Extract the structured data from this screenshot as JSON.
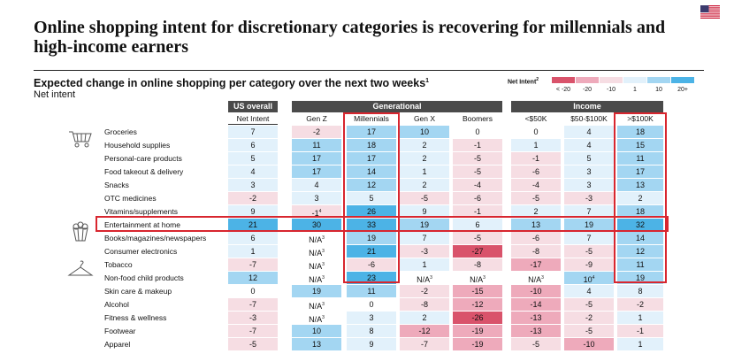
{
  "title": "Online shopping intent for discretionary categories is recovering for millennials and high-income earners",
  "subtitle": "Expected change in online shopping per category over the next two weeks",
  "subtitle_sup": "1",
  "unit": "Net intent",
  "legend": {
    "title": "Net Intent",
    "title_sup": "2",
    "labels": [
      "< -20",
      "-20",
      "-10",
      "1",
      "10",
      "20+"
    ],
    "colors": [
      "#d9536b",
      "#eeaabb",
      "#f6dde3",
      "#e2f1fb",
      "#a3d6f2",
      "#4cb3e6"
    ]
  },
  "groups": [
    {
      "label": "US overall"
    },
    {
      "label": "Generational"
    },
    {
      "label": "Income"
    }
  ],
  "columns": [
    "Net Intent",
    "Gen Z",
    "Millennials",
    "Gen X",
    "Boomers",
    "<$50K",
    "$50-$100K",
    ">$100K"
  ],
  "chart_data": {
    "type": "table",
    "columns": [
      "Net Intent",
      "Gen Z",
      "Millennials",
      "Gen X",
      "Boomers",
      "<$50K",
      "$50-$100K",
      ">$100K"
    ],
    "rows": [
      {
        "label": "Groceries",
        "values": [
          "7",
          "-2",
          "17",
          "10",
          "0",
          "0",
          "4",
          "18"
        ]
      },
      {
        "label": "Household supplies",
        "values": [
          "6",
          "11",
          "18",
          "2",
          "-1",
          "1",
          "4",
          "15"
        ]
      },
      {
        "label": "Personal-care products",
        "values": [
          "5",
          "17",
          "17",
          "2",
          "-5",
          "-1",
          "5",
          "11"
        ]
      },
      {
        "label": "Food takeout & delivery",
        "values": [
          "4",
          "17",
          "14",
          "1",
          "-5",
          "-6",
          "3",
          "17"
        ]
      },
      {
        "label": "Snacks",
        "values": [
          "3",
          "4",
          "12",
          "2",
          "-4",
          "-4",
          "3",
          "13"
        ]
      },
      {
        "label": "OTC medicines",
        "values": [
          "-2",
          "3",
          "5",
          "-5",
          "-6",
          "-5",
          "-3",
          "2"
        ]
      },
      {
        "label": "Vitamins/supplements",
        "values": [
          "9",
          "-1⁴",
          "26",
          "9",
          "-1",
          "2",
          "7",
          "18"
        ]
      },
      {
        "label": "Entertainment at home",
        "values": [
          "21",
          "30",
          "33",
          "19",
          "6",
          "13",
          "19",
          "32"
        ]
      },
      {
        "label": "Books/magazines/newspapers",
        "values": [
          "6",
          "N/A³",
          "19",
          "7",
          "-5",
          "-6",
          "7",
          "14"
        ]
      },
      {
        "label": "Consumer electronics",
        "values": [
          "1",
          "N/A³",
          "21",
          "-3",
          "-27",
          "-8",
          "-5",
          "12"
        ]
      },
      {
        "label": "Tobacco",
        "values": [
          "-7",
          "N/A³",
          "-6",
          "1",
          "-8",
          "-17",
          "-9",
          "11"
        ]
      },
      {
        "label": "Non-food child products",
        "values": [
          "12",
          "N/A³",
          "23",
          "N/A³",
          "N/A³",
          "N/A³",
          "10⁴",
          "19"
        ]
      },
      {
        "label": "Skin care & makeup",
        "values": [
          "0",
          "19",
          "11",
          "-2",
          "-15",
          "-10",
          "4",
          "8"
        ]
      },
      {
        "label": "Alcohol",
        "values": [
          "-7",
          "N/A³",
          "0",
          "-8",
          "-12",
          "-14",
          "-5",
          "-2"
        ]
      },
      {
        "label": "Fitness & wellness",
        "values": [
          "-3",
          "N/A³",
          "3",
          "2",
          "-26",
          "-13",
          "-2",
          "1"
        ]
      },
      {
        "label": "Footwear",
        "values": [
          "-7",
          "10",
          "8",
          "-12",
          "-19",
          "-13",
          "-5",
          "-1"
        ]
      },
      {
        "label": "Apparel",
        "values": [
          "-5",
          "13",
          "9",
          "-7",
          "-19",
          "-5",
          "-10",
          "1"
        ]
      }
    ],
    "highlight": {
      "row": "Entertainment at home",
      "columns": [
        "Millennials",
        ">$100K"
      ]
    }
  },
  "icons": [
    "flag-icon",
    "shopping-cart-icon",
    "popcorn-icon",
    "clothes-hanger-icon"
  ]
}
